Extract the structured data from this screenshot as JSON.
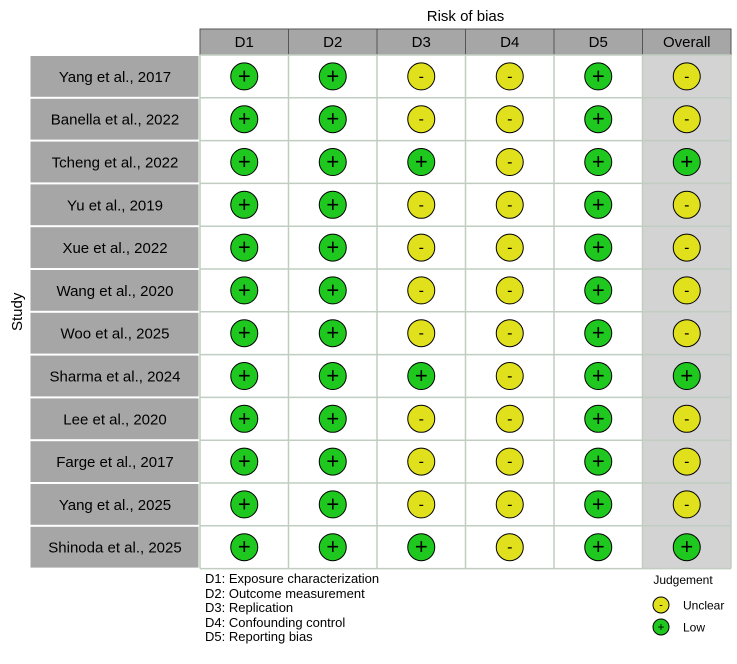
{
  "chart_data": {
    "type": "table",
    "title": "Risk of bias",
    "ylabel": "Study",
    "domains": [
      "D1",
      "D2",
      "D3",
      "D4",
      "D5"
    ],
    "overall_label": "Overall",
    "studies": [
      {
        "name": "Yang et al., 2017",
        "judgements": [
          "Low",
          "Low",
          "Unclear",
          "Unclear",
          "Low"
        ],
        "overall": "Unclear"
      },
      {
        "name": "Banella et al., 2022",
        "judgements": [
          "Low",
          "Low",
          "Unclear",
          "Unclear",
          "Low"
        ],
        "overall": "Unclear"
      },
      {
        "name": "Tcheng et al., 2022",
        "judgements": [
          "Low",
          "Low",
          "Low",
          "Unclear",
          "Low"
        ],
        "overall": "Low"
      },
      {
        "name": "Yu et al., 2019",
        "judgements": [
          "Low",
          "Low",
          "Unclear",
          "Unclear",
          "Low"
        ],
        "overall": "Unclear"
      },
      {
        "name": "Xue et al., 2022",
        "judgements": [
          "Low",
          "Low",
          "Unclear",
          "Unclear",
          "Low"
        ],
        "overall": "Unclear"
      },
      {
        "name": "Wang et al., 2020",
        "judgements": [
          "Low",
          "Low",
          "Unclear",
          "Unclear",
          "Low"
        ],
        "overall": "Unclear"
      },
      {
        "name": "Woo et al., 2025",
        "judgements": [
          "Low",
          "Low",
          "Unclear",
          "Unclear",
          "Low"
        ],
        "overall": "Unclear"
      },
      {
        "name": "Sharma et al.,  2024",
        "judgements": [
          "Low",
          "Low",
          "Low",
          "Unclear",
          "Low"
        ],
        "overall": "Low"
      },
      {
        "name": "Lee et al., 2020",
        "judgements": [
          "Low",
          "Low",
          "Unclear",
          "Unclear",
          "Low"
        ],
        "overall": "Unclear"
      },
      {
        "name": "Farge et al., 2017",
        "judgements": [
          "Low",
          "Low",
          "Unclear",
          "Unclear",
          "Low"
        ],
        "overall": "Unclear"
      },
      {
        "name": "Yang et al., 2025",
        "judgements": [
          "Low",
          "Low",
          "Unclear",
          "Unclear",
          "Low"
        ],
        "overall": "Unclear"
      },
      {
        "name": "Shinoda et al., 2025",
        "judgements": [
          "Low",
          "Low",
          "Low",
          "Unclear",
          "Low"
        ],
        "overall": "Low"
      }
    ],
    "legend": {
      "title": "Judgement",
      "placement": "bottom-right",
      "entries": [
        {
          "key": "Unclear",
          "label": "Unclear",
          "symbol": "-",
          "color": "#e1e01c"
        },
        {
          "key": "Low",
          "label": "Low",
          "symbol": "+",
          "color": "#1ec81e"
        }
      ]
    },
    "footnotes": [
      "D1: Exposure characterization",
      "D2: Outcome measurement",
      "D3: Replication",
      "D4: Confounding control",
      "D5: Reporting bias"
    ]
  },
  "colors": {
    "header_fill": "#a6a6a6",
    "study_fill": "#a6a6a6",
    "overall_fill": "#d3d3d3",
    "grid_line": "#c0cdc0",
    "border": "#555555"
  }
}
